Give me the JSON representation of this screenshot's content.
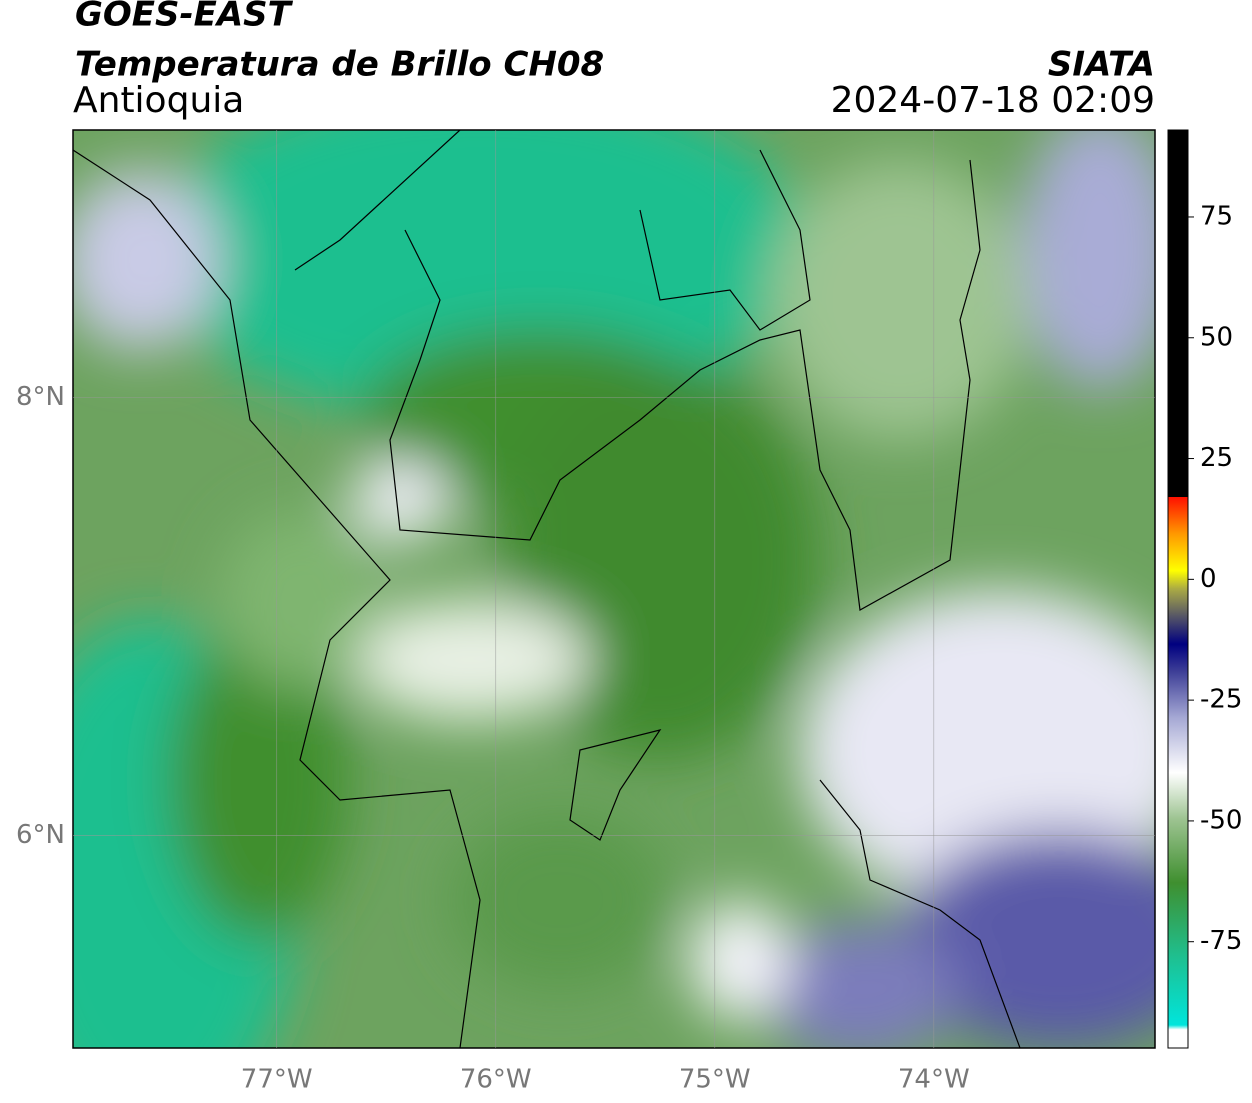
{
  "header": {
    "title": "GOES-EAST",
    "subtitle": "Temperatura de Brillo CH08",
    "region": "Antioquia",
    "source": "SIATA",
    "datetime": "2024-07-18 02:09"
  },
  "chart_data": {
    "type": "map",
    "xlim": [
      -77.93,
      -72.99
    ],
    "ylim": [
      5.03,
      9.22
    ],
    "xticks": [
      {
        "value": -77,
        "label": "77°W"
      },
      {
        "value": -76,
        "label": "76°W"
      },
      {
        "value": -75,
        "label": "75°W"
      },
      {
        "value": -74,
        "label": "74°W"
      }
    ],
    "yticks": [
      {
        "value": 6,
        "label": "6°N"
      },
      {
        "value": 8,
        "label": "8°N"
      }
    ],
    "grid": true,
    "colorbar": {
      "lim": [
        -97,
        93
      ],
      "ticks": [
        75,
        50,
        25,
        0,
        -25,
        -50,
        -75
      ]
    }
  }
}
